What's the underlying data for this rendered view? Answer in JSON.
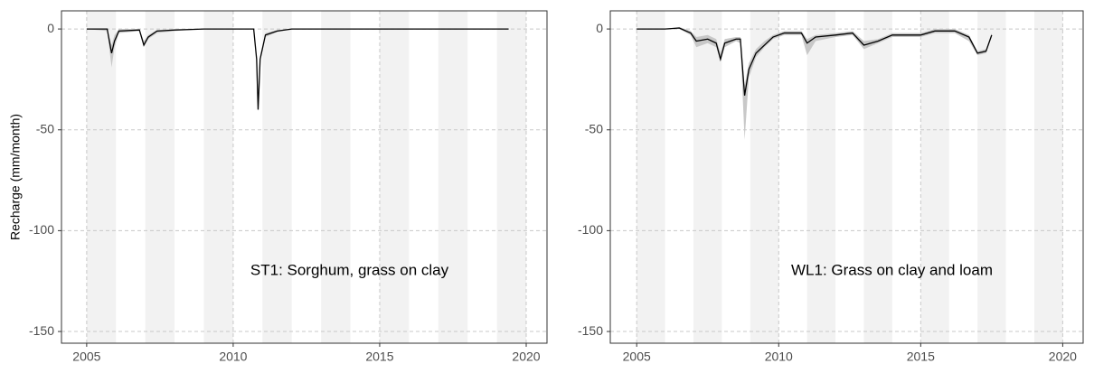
{
  "chart_data": [
    {
      "type": "line",
      "y_label": "Recharge (mm/month)",
      "annotation": "ST1: Sorghum, grass on clay",
      "xlim": [
        2004.14,
        2020.71
      ],
      "xticks": [
        2005,
        2010,
        2015,
        2020
      ],
      "ylim": [
        -155.8,
        9
      ],
      "yticks": [
        -150,
        -100,
        -50,
        0
      ],
      "grid": true,
      "shaded_bands": [
        [
          2005,
          2006
        ],
        [
          2007,
          2008
        ],
        [
          2009,
          2010
        ],
        [
          2011,
          2012
        ],
        [
          2013,
          2014
        ],
        [
          2015,
          2016
        ],
        [
          2017,
          2018
        ],
        [
          2019,
          2020
        ]
      ],
      "shade_color": "#f2f2f2",
      "color": "#000000",
      "band_color": "#c8c8c8",
      "x": [
        2005.0,
        2005.7,
        2005.85,
        2005.95,
        2006.1,
        2006.8,
        2006.95,
        2007.1,
        2007.4,
        2008.0,
        2009.0,
        2010.7,
        2010.8,
        2010.85,
        2010.92,
        2011.1,
        2011.5,
        2012.0,
        2015.0,
        2019.4
      ],
      "values": [
        0,
        0,
        -12,
        -6,
        -1,
        -0.5,
        -8,
        -4,
        -1,
        -0.5,
        0,
        0,
        -15,
        -40,
        -15,
        -3,
        -1,
        0,
        0,
        0
      ],
      "band_lower": [
        0,
        -1,
        -19,
        -9,
        -2,
        -1,
        -9,
        -5,
        -2,
        -1,
        0,
        0,
        -16,
        -41,
        -16,
        -4,
        -1.5,
        0,
        0,
        0
      ],
      "band_upper": [
        0,
        0,
        -8,
        -3,
        0,
        0,
        -6,
        -3,
        -0.5,
        0,
        0,
        0,
        -13,
        -38,
        -13,
        -2,
        -0.5,
        0,
        0,
        0
      ]
    },
    {
      "type": "line",
      "annotation": "WL1: Grass on clay and loam",
      "xlim": [
        2004.07,
        2020.72
      ],
      "xticks": [
        2005,
        2010,
        2015,
        2020
      ],
      "ylim": [
        -155.8,
        9
      ],
      "yticks": [
        -150,
        -100,
        -50,
        0
      ],
      "grid": true,
      "shaded_bands": [
        [
          2005,
          2006
        ],
        [
          2007,
          2008
        ],
        [
          2009,
          2010
        ],
        [
          2011,
          2012
        ],
        [
          2013,
          2014
        ],
        [
          2015,
          2016
        ],
        [
          2017,
          2018
        ],
        [
          2019,
          2020
        ]
      ],
      "shade_color": "#f2f2f2",
      "color": "#000000",
      "band_color": "#c8c8c8",
      "x": [
        2005.0,
        2006.0,
        2006.5,
        2006.9,
        2007.1,
        2007.5,
        2007.8,
        2007.95,
        2008.1,
        2008.5,
        2008.65,
        2008.8,
        2008.95,
        2009.2,
        2009.5,
        2009.8,
        2010.2,
        2010.8,
        2011.0,
        2011.3,
        2012.0,
        2012.6,
        2013.0,
        2013.5,
        2014.0,
        2015.0,
        2015.5,
        2016.2,
        2016.7,
        2017.0,
        2017.3,
        2017.5
      ],
      "values": [
        0,
        0,
        0.5,
        -2,
        -6,
        -5,
        -7,
        -15,
        -7,
        -5,
        -5,
        -33,
        -20,
        -12,
        -8,
        -4,
        -2,
        -2,
        -7,
        -4,
        -3,
        -2,
        -8,
        -6,
        -3,
        -3,
        -1,
        -1,
        -4,
        -12,
        -11,
        -3
      ],
      "band_lower": [
        0,
        0,
        0,
        -3,
        -9,
        -7,
        -9,
        -16,
        -9,
        -6,
        -7,
        -55,
        -24,
        -14,
        -9,
        -5,
        -3,
        -3,
        -13,
        -6,
        -4,
        -3,
        -10,
        -7,
        -4,
        -4,
        -2,
        -2,
        -6,
        -13,
        -12,
        -4
      ],
      "band_upper": [
        0,
        0,
        1,
        -1,
        -4,
        -3,
        -5,
        -12,
        -5,
        -4,
        -4,
        -28,
        -17,
        -10,
        -6,
        -3,
        -1,
        -1,
        -5,
        -3,
        -2,
        -1,
        -6,
        -5,
        -2,
        -2,
        0,
        0,
        -3,
        -11,
        -10,
        -2
      ]
    }
  ]
}
